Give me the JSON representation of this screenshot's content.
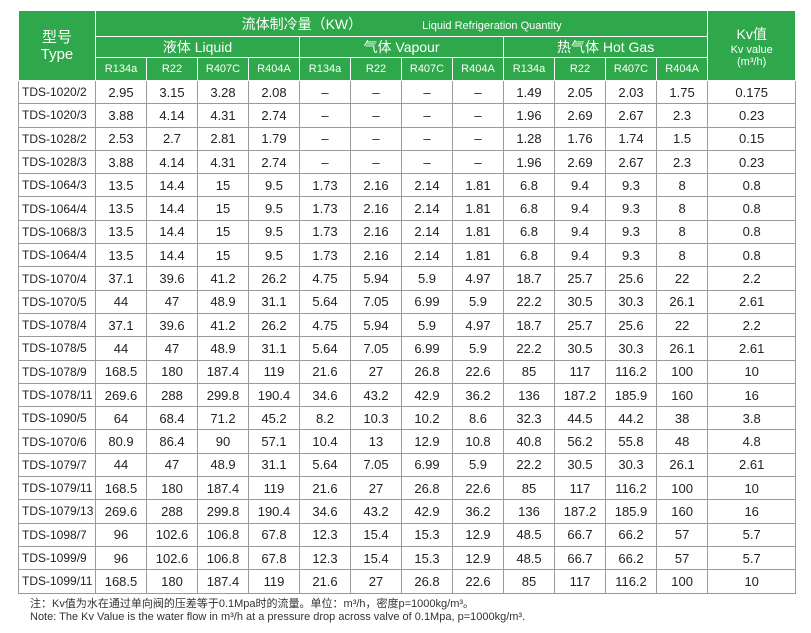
{
  "header": {
    "model": [
      "型号",
      "Type"
    ],
    "capacity_cn": "流体制冷量（KW）",
    "capacity_en": "Liquid Refrigeration Quantity",
    "groups": [
      "液体 Liquid",
      "气体 Vapour",
      "热气体 Hot Gas"
    ],
    "refrigerants": [
      "R134a",
      "R22",
      "R407C",
      "R404A"
    ],
    "kv": [
      "Kv值",
      "Kv value",
      "(m³/h)"
    ]
  },
  "table": {
    "rows": [
      [
        "TDS-1020/2",
        2.95,
        3.15,
        3.28,
        2.08,
        "–",
        "–",
        "–",
        "–",
        1.49,
        2.05,
        2.03,
        1.75,
        0.175
      ],
      [
        "TDS-1020/3",
        3.88,
        4.14,
        4.31,
        2.74,
        "–",
        "–",
        "–",
        "–",
        1.96,
        2.69,
        2.67,
        2.3,
        0.23
      ],
      [
        "TDS-1028/2",
        2.53,
        2.7,
        2.81,
        1.79,
        "–",
        "–",
        "–",
        "–",
        1.28,
        1.76,
        1.74,
        1.5,
        0.15
      ],
      [
        "TDS-1028/3",
        3.88,
        4.14,
        4.31,
        2.74,
        "–",
        "–",
        "–",
        "–",
        1.96,
        2.69,
        2.67,
        2.3,
        0.23
      ],
      [
        "TDS-1064/3",
        13.5,
        14.4,
        15,
        9.5,
        1.73,
        2.16,
        2.14,
        1.81,
        6.8,
        9.4,
        9.3,
        8,
        0.8
      ],
      [
        "TDS-1064/4",
        13.5,
        14.4,
        15,
        9.5,
        1.73,
        2.16,
        2.14,
        1.81,
        6.8,
        9.4,
        9.3,
        8,
        0.8
      ],
      [
        "TDS-1068/3",
        13.5,
        14.4,
        15,
        9.5,
        1.73,
        2.16,
        2.14,
        1.81,
        6.8,
        9.4,
        9.3,
        8,
        0.8
      ],
      [
        "TDS-1064/4",
        13.5,
        14.4,
        15,
        9.5,
        1.73,
        2.16,
        2.14,
        1.81,
        6.8,
        9.4,
        9.3,
        8,
        0.8
      ],
      [
        "TDS-1070/4",
        37.1,
        39.6,
        41.2,
        26.2,
        4.75,
        5.94,
        5.9,
        4.97,
        18.7,
        25.7,
        25.6,
        22,
        2.2
      ],
      [
        "TDS-1070/5",
        44,
        47,
        48.9,
        31.1,
        5.64,
        7.05,
        6.99,
        5.9,
        22.2,
        30.5,
        30.3,
        26.1,
        2.61
      ],
      [
        "TDS-1078/4",
        37.1,
        39.6,
        41.2,
        26.2,
        4.75,
        5.94,
        5.9,
        4.97,
        18.7,
        25.7,
        25.6,
        22,
        2.2
      ],
      [
        "TDS-1078/5",
        44,
        47,
        48.9,
        31.1,
        5.64,
        7.05,
        6.99,
        5.9,
        22.2,
        30.5,
        30.3,
        26.1,
        2.61
      ],
      [
        "TDS-1078/9",
        168.5,
        180,
        187.4,
        119,
        21.6,
        27,
        26.8,
        22.6,
        85,
        117,
        116.2,
        100,
        10
      ],
      [
        "TDS-1078/11",
        269.6,
        288,
        299.8,
        190.4,
        34.6,
        43.2,
        42.9,
        36.2,
        136,
        187.2,
        185.9,
        160,
        16
      ],
      [
        "TDS-1090/5",
        64,
        68.4,
        71.2,
        45.2,
        8.2,
        10.3,
        10.2,
        8.6,
        32.3,
        44.5,
        44.2,
        38,
        3.8
      ],
      [
        "TDS-1070/6",
        80.9,
        86.4,
        90,
        57.1,
        10.4,
        13,
        12.9,
        10.8,
        40.8,
        56.2,
        55.8,
        48,
        4.8
      ],
      [
        "TDS-1079/7",
        44,
        47,
        48.9,
        31.1,
        5.64,
        7.05,
        6.99,
        5.9,
        22.2,
        30.5,
        30.3,
        26.1,
        2.61
      ],
      [
        "TDS-1079/11",
        168.5,
        180,
        187.4,
        119,
        21.6,
        27,
        26.8,
        22.6,
        85,
        117,
        116.2,
        100,
        10
      ],
      [
        "TDS-1079/13",
        269.6,
        288,
        299.8,
        190.4,
        34.6,
        43.2,
        42.9,
        36.2,
        136,
        187.2,
        185.9,
        160,
        16
      ],
      [
        "TDS-1098/7",
        96,
        102.6,
        106.8,
        67.8,
        12.3,
        15.4,
        15.3,
        12.9,
        48.5,
        66.7,
        66.2,
        57,
        5.7
      ],
      [
        "TDS-1099/9",
        96,
        102.6,
        106.8,
        67.8,
        12.3,
        15.4,
        15.3,
        12.9,
        48.5,
        66.7,
        66.2,
        57,
        5.7
      ],
      [
        "TDS-1099/11",
        168.5,
        180,
        187.4,
        119,
        21.6,
        27,
        26.8,
        22.6,
        85,
        117,
        116.2,
        100,
        10
      ]
    ]
  },
  "notes": [
    "注：Kv值为水在通过单向阀的压差等于0.1Mpa时的流量。单位：m³/h，密度p=1000kg/m³。",
    "Note: The Kv Value is the water flow in m³/h at a pressure drop across valve of 0.1Mpa, p=1000kg/m³."
  ]
}
